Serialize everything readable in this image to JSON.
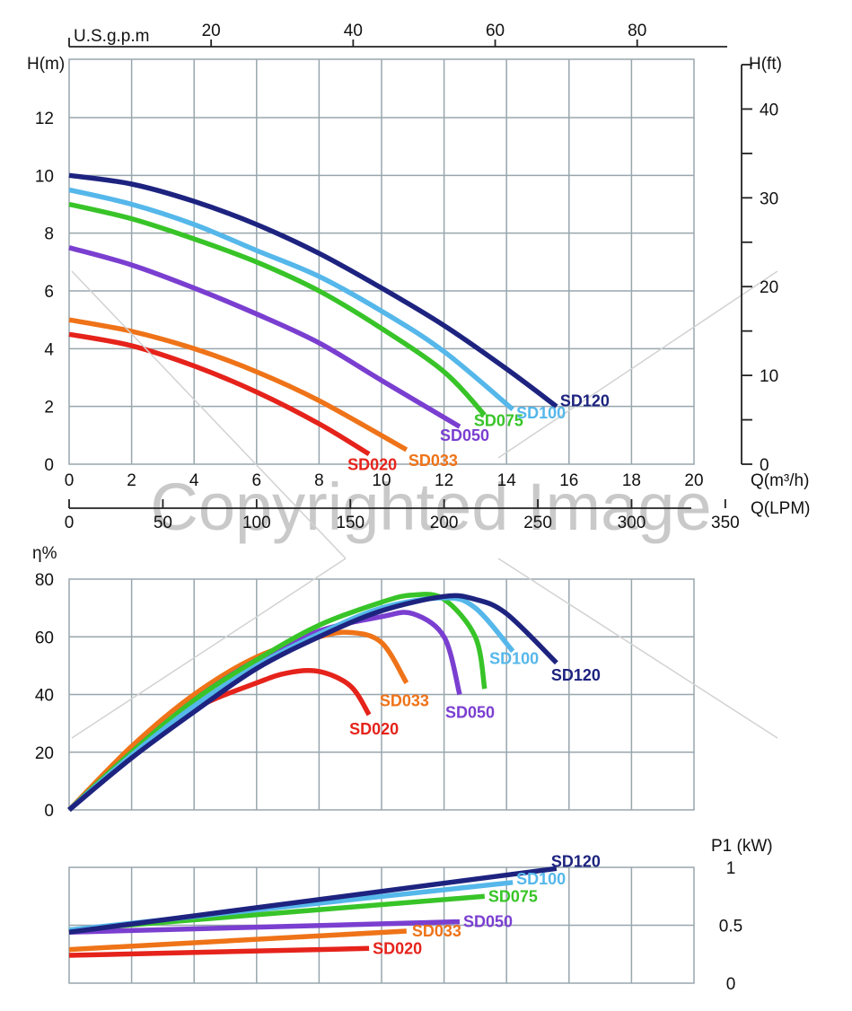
{
  "watermark": "Copyrighted Image",
  "axes": {
    "top_label": "U.S.g.p.m",
    "h_m_label": "H(m)",
    "h_ft_label": "H(ft)",
    "q_m3h_label": "Q(m³/h)",
    "q_lpm_label": "Q(LPM)",
    "eff_label": "η%",
    "power_label": "P1 (kW)"
  },
  "colors": {
    "SD020": "#e5231b",
    "SD033": "#ef7318",
    "SD050": "#7a3fd0",
    "SD075": "#38c428",
    "SD100": "#55b7ea",
    "SD120": "#1d237f",
    "grid": "#98a6ad"
  },
  "chart_data": [
    {
      "type": "line",
      "name": "head",
      "xlabel": "Q(m³/h)",
      "ylabel": "H(m)",
      "xlim": [
        0,
        20
      ],
      "ylim": [
        0,
        13
      ],
      "x_ticks": [
        "0",
        "2",
        "4",
        "6",
        "8",
        "10",
        "12",
        "14",
        "16",
        "18",
        "20"
      ],
      "y_ticks": [
        "0",
        "2",
        "4",
        "6",
        "8",
        "10",
        "12"
      ],
      "secondary_y": {
        "label": "H(ft)",
        "ticks": [
          "0",
          "10",
          "20",
          "30",
          "40"
        ],
        "lim": [
          0,
          45
        ]
      },
      "secondary_x_top": {
        "label": "U.S.g.p.m",
        "ticks": [
          "20",
          "40",
          "60",
          "80"
        ],
        "lim": [
          0,
          88
        ]
      },
      "secondary_x_bottom": {
        "label": "Q(LPM)",
        "ticks": [
          "0",
          "50",
          "100",
          "150",
          "200",
          "250",
          "300",
          "350"
        ],
        "lim": [
          0,
          333.3
        ]
      },
      "grid": true,
      "series": [
        {
          "name": "SD020",
          "x": [
            0,
            2,
            4,
            6,
            8,
            9.6
          ],
          "y": [
            4.5,
            4.1,
            3.4,
            2.5,
            1.4,
            0.35
          ]
        },
        {
          "name": "SD033",
          "x": [
            0,
            2,
            4,
            6,
            8,
            10.8
          ],
          "y": [
            5.0,
            4.6,
            4.0,
            3.2,
            2.2,
            0.5
          ]
        },
        {
          "name": "SD050",
          "x": [
            0,
            2,
            4,
            6,
            8,
            10,
            12.5
          ],
          "y": [
            7.5,
            6.9,
            6.1,
            5.2,
            4.2,
            2.9,
            1.3
          ]
        },
        {
          "name": "SD075",
          "x": [
            0,
            2,
            4,
            6,
            8,
            10,
            12,
            13.3
          ],
          "y": [
            9.0,
            8.5,
            7.8,
            7.0,
            6.0,
            4.7,
            3.2,
            1.7
          ]
        },
        {
          "name": "SD100",
          "x": [
            0,
            2,
            4,
            6,
            8,
            10,
            12,
            14.2
          ],
          "y": [
            9.5,
            9.0,
            8.3,
            7.4,
            6.5,
            5.3,
            3.9,
            1.9
          ]
        },
        {
          "name": "SD120",
          "x": [
            0,
            2,
            4,
            6,
            8,
            10,
            12,
            14,
            15.6
          ],
          "y": [
            10.0,
            9.7,
            9.1,
            8.3,
            7.3,
            6.1,
            4.8,
            3.3,
            2.0
          ]
        }
      ]
    },
    {
      "type": "line",
      "name": "efficiency",
      "ylabel": "η%",
      "xlim": [
        0,
        20
      ],
      "ylim": [
        0,
        80
      ],
      "y_ticks": [
        "0",
        "20",
        "40",
        "60",
        "80"
      ],
      "grid": true,
      "series": [
        {
          "name": "SD020",
          "x": [
            0,
            2,
            4,
            6,
            7,
            8,
            9,
            9.6
          ],
          "y": [
            0,
            20,
            35,
            44,
            47.5,
            48,
            43,
            33
          ]
        },
        {
          "name": "SD033",
          "x": [
            0,
            2,
            4,
            6,
            8,
            9,
            10,
            10.8
          ],
          "y": [
            0,
            22,
            40,
            53,
            60,
            61.5,
            58,
            44
          ]
        },
        {
          "name": "SD050",
          "x": [
            0,
            2,
            4,
            6,
            8,
            10,
            11,
            12,
            12.5
          ],
          "y": [
            0,
            20,
            38,
            52,
            62,
            67,
            68,
            60,
            40
          ]
        },
        {
          "name": "SD075",
          "x": [
            0,
            2,
            4,
            6,
            8,
            10,
            11,
            12,
            13,
            13.3
          ],
          "y": [
            0,
            20,
            38,
            52,
            64,
            72,
            74.5,
            73,
            60,
            42
          ]
        },
        {
          "name": "SD100",
          "x": [
            0,
            2,
            4,
            6,
            8,
            10,
            12,
            13,
            14.2
          ],
          "y": [
            0,
            19,
            36,
            50,
            61,
            70,
            73.5,
            70,
            55
          ]
        },
        {
          "name": "SD120",
          "x": [
            0,
            2,
            4,
            6,
            8,
            10,
            12,
            13,
            14,
            15.6
          ],
          "y": [
            0,
            18,
            34,
            49,
            60,
            69,
            74,
            73,
            68,
            51
          ]
        }
      ]
    },
    {
      "type": "line",
      "name": "power",
      "ylabel": "P1 (kW)",
      "xlim": [
        0,
        20
      ],
      "ylim": [
        0,
        1
      ],
      "y_ticks": [
        "0",
        "0.5",
        "1"
      ],
      "grid": true,
      "series": [
        {
          "name": "SD020",
          "x": [
            0,
            9.6
          ],
          "y": [
            0.24,
            0.3
          ]
        },
        {
          "name": "SD033",
          "x": [
            0,
            10.8
          ],
          "y": [
            0.29,
            0.45
          ]
        },
        {
          "name": "SD050",
          "x": [
            0,
            12.5
          ],
          "y": [
            0.44,
            0.53
          ]
        },
        {
          "name": "SD075",
          "x": [
            0,
            13.3
          ],
          "y": [
            0.46,
            0.75
          ]
        },
        {
          "name": "SD100",
          "x": [
            0,
            14.2
          ],
          "y": [
            0.46,
            0.87
          ]
        },
        {
          "name": "SD120",
          "x": [
            0,
            15.6
          ],
          "y": [
            0.44,
            0.99
          ]
        }
      ]
    }
  ]
}
